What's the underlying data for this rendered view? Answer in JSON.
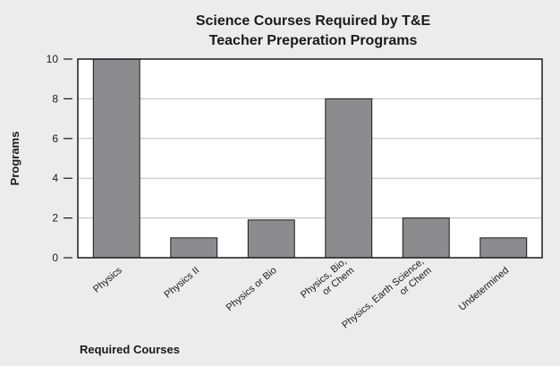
{
  "chart_data": {
    "type": "bar",
    "title_lines": [
      "Science Courses Required by T&E",
      "Teacher Preperation Programs"
    ],
    "xlabel": "Required Courses",
    "ylabel": "Programs",
    "categories": [
      [
        "Physics"
      ],
      [
        "Physics II"
      ],
      [
        "Physics or Bio"
      ],
      [
        "Physics, Bio,",
        "or Chem"
      ],
      [
        "Physics, Earth Science,",
        "or Chem"
      ],
      [
        "Undetermined"
      ]
    ],
    "values": [
      10,
      1,
      1.9,
      8,
      2,
      1
    ],
    "ylim": [
      0,
      10
    ],
    "yticks": [
      0,
      2,
      4,
      6,
      8,
      10
    ],
    "grid": true,
    "legend": "none",
    "colors": {
      "bar": "#8c8c8e",
      "bar_edge": "#1a1a1a",
      "plot_bg": "#ffffff",
      "page_bg": "#ececec",
      "grid": "#bdbdbd",
      "axis": "#1a1a1a"
    }
  }
}
